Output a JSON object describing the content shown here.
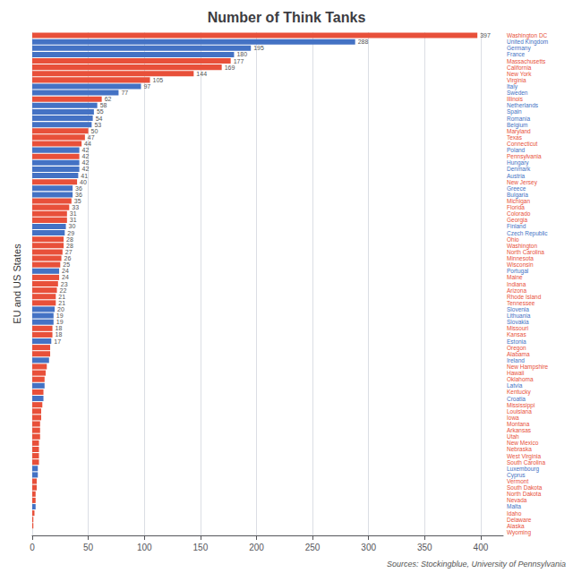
{
  "chart_data": {
    "type": "bar",
    "orientation": "horizontal",
    "title": "Number of Think Tanks",
    "ylabel": "EU and US States",
    "source": "Sources: Stockingblue, University of Pennsylvania",
    "categories": [
      "Washington DC",
      "United Kingdom",
      "Germany",
      "France",
      "Massachusetts",
      "California",
      "New York",
      "Virginia",
      "Italy",
      "Sweden",
      "Illinois",
      "Netherlands",
      "Spain",
      "Romania",
      "Belgium",
      "Maryland",
      "Texas",
      "Connecticut",
      "Poland",
      "Pennsylvania",
      "Hungary",
      "Denmark",
      "Austria",
      "New Jersey",
      "Greece",
      "Bulgaria",
      "Michigan",
      "Florida",
      "Colorado",
      "Georgia",
      "Finland",
      "Czech Republic",
      "Ohio",
      "Washington",
      "North Carolina",
      "Minnesota",
      "Wisconsin",
      "Portugal",
      "Maine",
      "Indiana",
      "Arizona",
      "Rhode Island",
      "Tennessee",
      "Slovenia",
      "Lithuania",
      "Slovakia",
      "Missouri",
      "Kansas",
      "Estonia",
      "Oregon",
      "Alabama",
      "Ireland",
      "New Hampshire",
      "Hawaii",
      "Oklahoma",
      "Latvia",
      "Kentucky",
      "Croatia",
      "Mississippi",
      "Louisiana",
      "Iowa",
      "Montana",
      "Arkansas",
      "Utah",
      "New Mexico",
      "Nebraska",
      "West Virginia",
      "South Carolina",
      "Luxembourg",
      "Cyprus",
      "Vermont",
      "South Dakota",
      "North Dakota",
      "Nevada",
      "Malta",
      "Idaho",
      "Delaware",
      "Alaska",
      "Wyoming"
    ],
    "values": [
      397,
      288,
      195,
      180,
      177,
      169,
      144,
      105,
      97,
      77,
      62,
      58,
      55,
      54,
      53,
      50,
      47,
      44,
      42,
      42,
      42,
      42,
      41,
      40,
      36,
      36,
      35,
      33,
      31,
      31,
      30,
      29,
      28,
      28,
      27,
      26,
      25,
      24,
      24,
      23,
      22,
      21,
      21,
      20,
      19,
      19,
      18,
      18,
      17,
      16,
      16,
      15,
      13,
      12,
      11,
      11,
      10,
      10,
      9,
      8,
      8,
      7,
      7,
      7,
      6,
      6,
      6,
      6,
      5,
      5,
      4,
      4,
      3,
      3,
      3,
      2,
      1,
      1,
      0
    ],
    "value_labels": [
      "397",
      "288",
      "195",
      "180",
      "177",
      "169",
      "144",
      "105",
      "97",
      "77",
      "62",
      "58",
      "55",
      "54",
      "53",
      "50",
      "47",
      "44",
      "42",
      "42",
      "42",
      "42",
      "41",
      "40",
      "36",
      "36",
      "35",
      "33",
      "31",
      "31",
      "30",
      "29",
      "28",
      "28",
      "27",
      "26",
      "25",
      "24",
      "24",
      "23",
      "22",
      "21",
      "21",
      "20",
      "19",
      "19",
      "18",
      "18",
      "17",
      null,
      null,
      null,
      null,
      null,
      null,
      null,
      null,
      null,
      null,
      null,
      null,
      null,
      null,
      null,
      null,
      null,
      null,
      null,
      null,
      null,
      null,
      null,
      null,
      null,
      null,
      null,
      null,
      null,
      null
    ],
    "data_labels": true,
    "colors": [
      "#e8503a",
      "#4472c4",
      "#4472c4",
      "#4472c4",
      "#e8503a",
      "#e8503a",
      "#e8503a",
      "#e8503a",
      "#4472c4",
      "#4472c4",
      "#e8503a",
      "#4472c4",
      "#4472c4",
      "#4472c4",
      "#4472c4",
      "#e8503a",
      "#e8503a",
      "#e8503a",
      "#4472c4",
      "#e8503a",
      "#4472c4",
      "#4472c4",
      "#4472c4",
      "#e8503a",
      "#4472c4",
      "#4472c4",
      "#e8503a",
      "#e8503a",
      "#e8503a",
      "#e8503a",
      "#4472c4",
      "#4472c4",
      "#e8503a",
      "#e8503a",
      "#e8503a",
      "#e8503a",
      "#e8503a",
      "#4472c4",
      "#e8503a",
      "#e8503a",
      "#e8503a",
      "#e8503a",
      "#e8503a",
      "#4472c4",
      "#4472c4",
      "#4472c4",
      "#e8503a",
      "#e8503a",
      "#4472c4",
      "#e8503a",
      "#e8503a",
      "#4472c4",
      "#e8503a",
      "#e8503a",
      "#e8503a",
      "#4472c4",
      "#e8503a",
      "#4472c4",
      "#e8503a",
      "#e8503a",
      "#e8503a",
      "#e8503a",
      "#e8503a",
      "#e8503a",
      "#e8503a",
      "#e8503a",
      "#e8503a",
      "#e8503a",
      "#4472c4",
      "#4472c4",
      "#e8503a",
      "#e8503a",
      "#e8503a",
      "#e8503a",
      "#4472c4",
      "#e8503a",
      "#e8503a",
      "#e8503a",
      "#e8503a"
    ],
    "xlim": [
      0,
      420
    ],
    "xticks": [
      0,
      50,
      100,
      150,
      200,
      250,
      300,
      350,
      400
    ],
    "grid": true
  }
}
